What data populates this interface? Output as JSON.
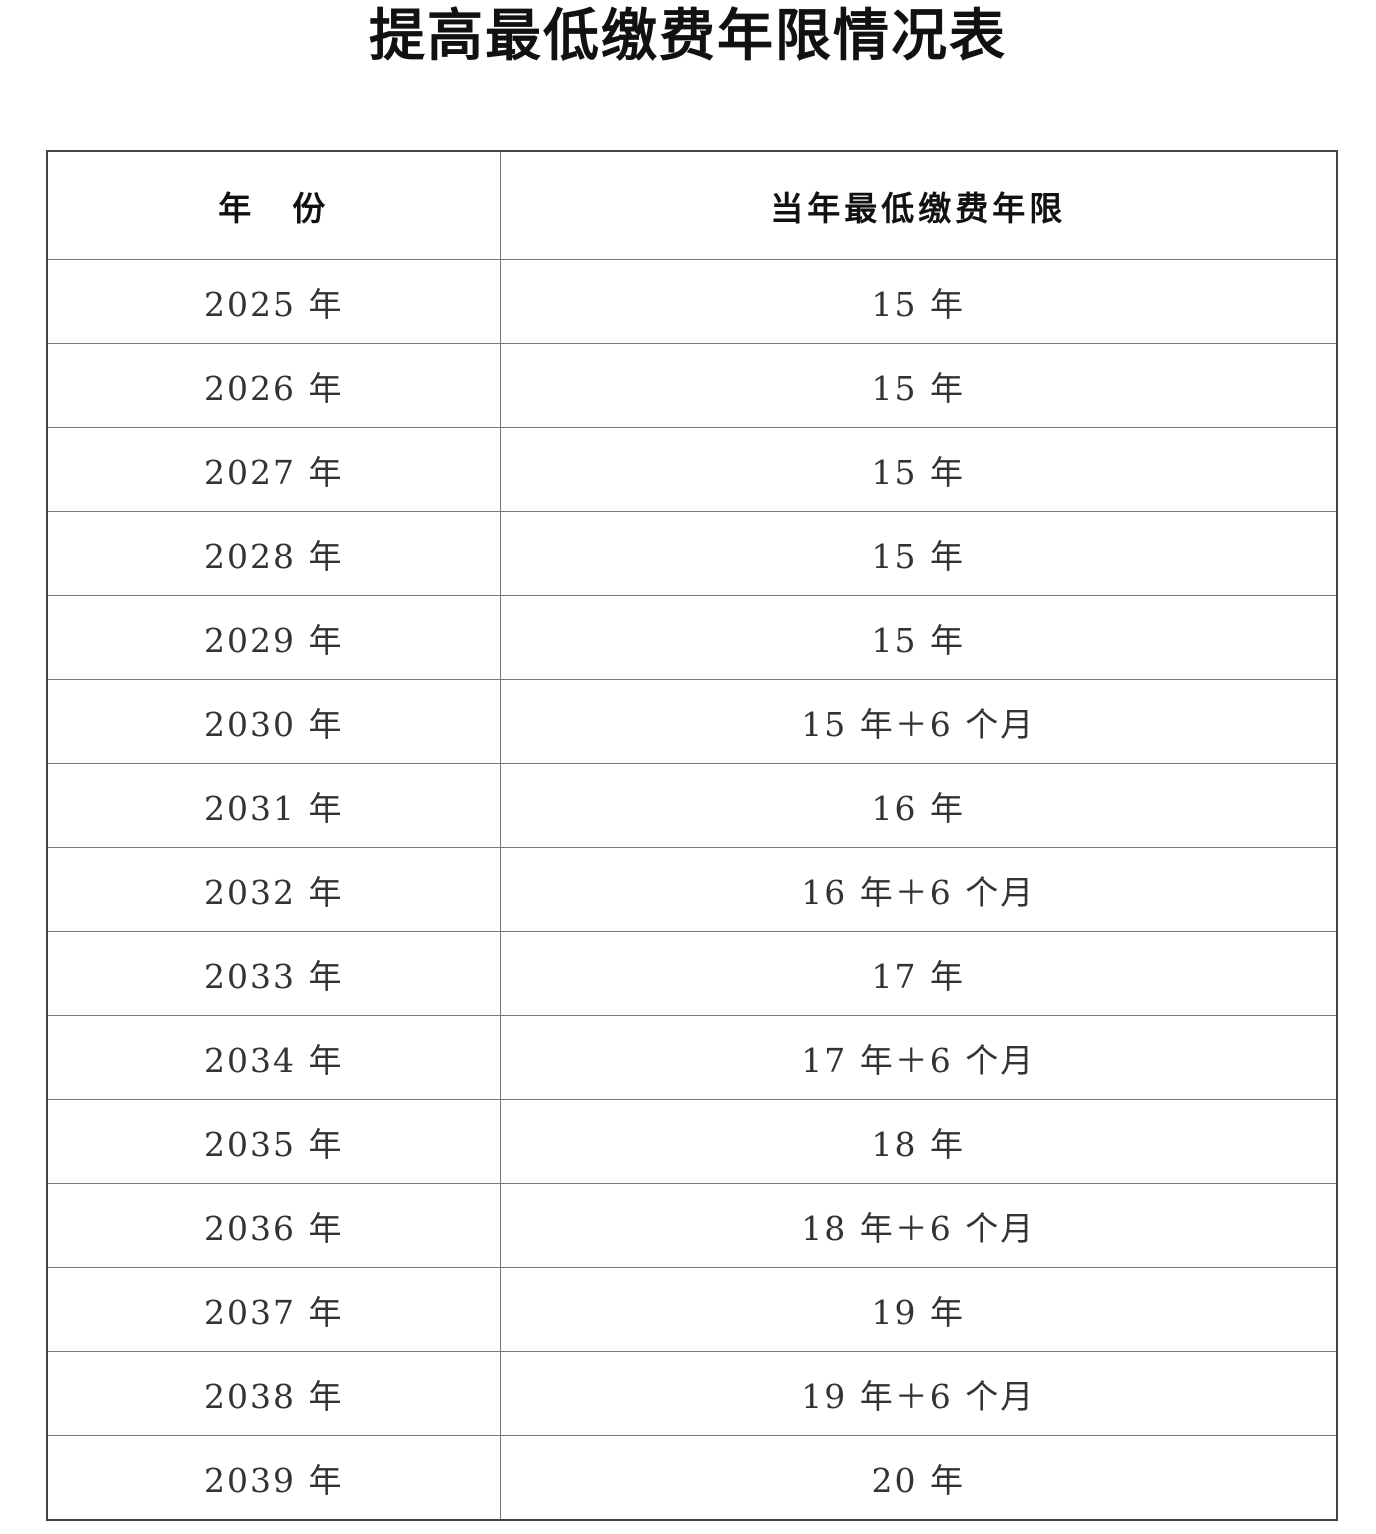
{
  "title": "提高最低缴费年限情况表",
  "table": {
    "headers": [
      "年　份",
      "当年最低缴费年限"
    ],
    "rows": [
      [
        "2025 年",
        "15 年"
      ],
      [
        "2026 年",
        "15 年"
      ],
      [
        "2027 年",
        "15 年"
      ],
      [
        "2028 年",
        "15 年"
      ],
      [
        "2029 年",
        "15 年"
      ],
      [
        "2030 年",
        "15 年＋6 个月"
      ],
      [
        "2031 年",
        "16 年"
      ],
      [
        "2032 年",
        "16 年＋6 个月"
      ],
      [
        "2033 年",
        "17 年"
      ],
      [
        "2034 年",
        "17 年＋6 个月"
      ],
      [
        "2035 年",
        "18 年"
      ],
      [
        "2036 年",
        "18 年＋6 个月"
      ],
      [
        "2037 年",
        "19 年"
      ],
      [
        "2038 年",
        "19 年＋6 个月"
      ],
      [
        "2039 年",
        "20 年"
      ]
    ]
  }
}
